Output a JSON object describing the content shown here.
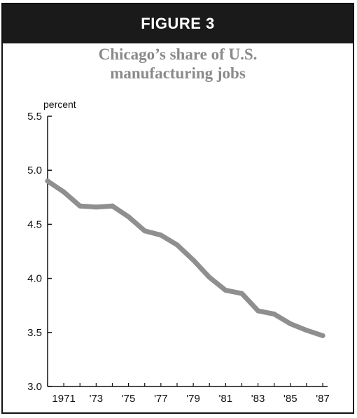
{
  "figure_label": "FIGURE 3",
  "chart_data": {
    "type": "line",
    "title_line1": "Chicago’s share of U.S.",
    "title_line2": "manufacturing jobs",
    "ylabel": "percent",
    "xlabel": "",
    "ylim": [
      3.0,
      5.5
    ],
    "yticks": [
      "3.0",
      "3.5",
      "4.0",
      "4.5",
      "5.0",
      "5.5"
    ],
    "xlim": [
      1970,
      1987.3
    ],
    "xticks": [
      {
        "year": 1971,
        "label": "1971"
      },
      {
        "year": 1973,
        "label": "'73"
      },
      {
        "year": 1975,
        "label": "'75"
      },
      {
        "year": 1977,
        "label": "'77"
      },
      {
        "year": 1979,
        "label": "'79"
      },
      {
        "year": 1981,
        "label": "'81"
      },
      {
        "year": 1983,
        "label": "'83"
      },
      {
        "year": 1985,
        "label": "'85"
      },
      {
        "year": 1987,
        "label": "'87"
      }
    ],
    "series": [
      {
        "color": "#8f8f8f",
        "x": [
          1970,
          1971,
          1972,
          1973,
          1974,
          1975,
          1976,
          1977,
          1978,
          1979,
          1980,
          1981,
          1982,
          1983,
          1984,
          1985,
          1986,
          1987
        ],
        "y": [
          4.9,
          4.8,
          4.67,
          4.66,
          4.67,
          4.57,
          4.44,
          4.4,
          4.31,
          4.17,
          4.01,
          3.89,
          3.86,
          3.7,
          3.67,
          3.58,
          3.52,
          3.47
        ]
      }
    ],
    "grid": false
  }
}
